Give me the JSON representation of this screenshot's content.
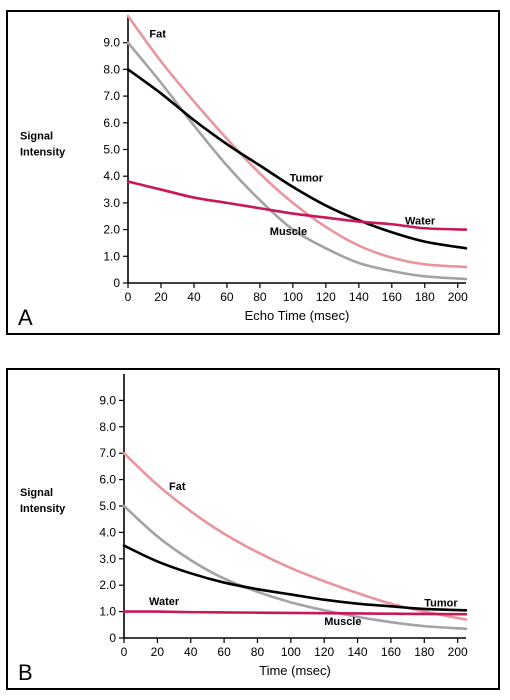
{
  "chart_data": [
    {
      "type": "line",
      "panel_label": "A",
      "xlabel": "Echo Time (msec)",
      "ylabel_lines": [
        "Signal",
        "Intensity"
      ],
      "xlim": [
        0,
        205
      ],
      "ylim": [
        0,
        10
      ],
      "x_ticks": [
        "0",
        "20",
        "40",
        "60",
        "80",
        "100",
        "120",
        "140",
        "160",
        "180",
        "200"
      ],
      "y_ticks": [
        "0",
        "1.0",
        "2.0",
        "3.0",
        "4.0",
        "5.0",
        "6.0",
        "7.0",
        "8.0",
        "9.0"
      ],
      "grid": false,
      "x": [
        0,
        20,
        40,
        60,
        80,
        100,
        120,
        140,
        160,
        180,
        205
      ],
      "series": [
        {
          "name": "Fat",
          "color": "#e9959d",
          "values": [
            10.0,
            8.3,
            6.8,
            5.4,
            4.1,
            3.0,
            2.1,
            1.4,
            0.95,
            0.7,
            0.6
          ],
          "label_pos": [
            13,
            9.2
          ]
        },
        {
          "name": "Muscle",
          "color": "#a5a2a5",
          "values": [
            9.0,
            7.5,
            5.9,
            4.4,
            3.1,
            2.0,
            1.3,
            0.75,
            0.45,
            0.25,
            0.15
          ],
          "label_pos": [
            86,
            1.8
          ]
        },
        {
          "name": "Tumor",
          "color": "#000000",
          "values": [
            8.0,
            7.1,
            6.1,
            5.2,
            4.4,
            3.6,
            2.9,
            2.35,
            1.9,
            1.55,
            1.3
          ],
          "label_pos": [
            98,
            3.8
          ]
        },
        {
          "name": "Water",
          "color": "#c8185a",
          "values": [
            3.8,
            3.5,
            3.2,
            3.0,
            2.8,
            2.6,
            2.45,
            2.3,
            2.2,
            2.05,
            2.0
          ],
          "label_pos": [
            168,
            2.2
          ]
        }
      ]
    },
    {
      "type": "line",
      "panel_label": "B",
      "xlabel": "Time (msec)",
      "ylabel_lines": [
        "Signal",
        "Intensity"
      ],
      "xlim": [
        0,
        205
      ],
      "ylim": [
        0,
        10
      ],
      "x_ticks": [
        "0",
        "20",
        "40",
        "60",
        "80",
        "100",
        "120",
        "140",
        "160",
        "180",
        "200"
      ],
      "y_ticks": [
        "0",
        "1.0",
        "2.0",
        "3.0",
        "4.0",
        "5.0",
        "6.0",
        "7.0",
        "8.0",
        "9.0"
      ],
      "grid": false,
      "x": [
        0,
        20,
        40,
        60,
        80,
        100,
        120,
        140,
        160,
        180,
        205
      ],
      "series": [
        {
          "name": "Fat",
          "color": "#e9959d",
          "values": [
            7.0,
            5.8,
            4.8,
            3.95,
            3.25,
            2.65,
            2.15,
            1.7,
            1.3,
            1.0,
            0.7
          ],
          "label_pos": [
            27,
            5.6
          ]
        },
        {
          "name": "Muscle",
          "color": "#a5a2a5",
          "values": [
            5.0,
            3.85,
            2.95,
            2.25,
            1.75,
            1.35,
            1.05,
            0.8,
            0.6,
            0.45,
            0.35
          ],
          "label_pos": [
            120,
            0.5
          ]
        },
        {
          "name": "Tumor",
          "color": "#000000",
          "values": [
            3.5,
            2.9,
            2.45,
            2.1,
            1.85,
            1.65,
            1.45,
            1.3,
            1.2,
            1.1,
            1.05
          ],
          "label_pos": [
            180,
            1.2
          ]
        },
        {
          "name": "Water",
          "color": "#c8185a",
          "values": [
            1.0,
            1.0,
            0.98,
            0.97,
            0.96,
            0.95,
            0.94,
            0.93,
            0.92,
            0.91,
            0.9
          ],
          "label_pos": [
            15,
            1.25
          ]
        }
      ]
    }
  ]
}
